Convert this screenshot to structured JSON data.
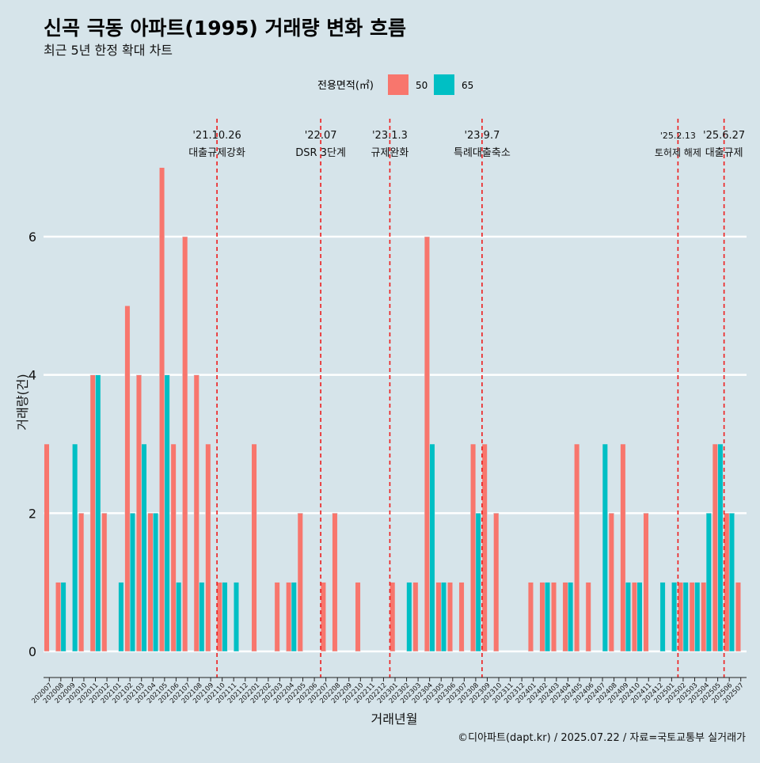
{
  "chart_data": {
    "type": "bar",
    "title": "신곡 극동 아파트(1995) 거래량 변화 흐름",
    "subtitle": "최근 5년 한정 확대 차트",
    "xlabel": "거래년월",
    "ylabel": "거래량(건)",
    "ylim": [
      0,
      7
    ],
    "yticks": [
      0,
      2,
      4,
      6
    ],
    "legend": {
      "title": "전용면적(㎡)",
      "position": "top-center"
    },
    "caption": "©디아파트(dapt.kr) / 2025.07.22 / 자료=국토교통부 실거래가",
    "categories": [
      "202007",
      "202008",
      "202009",
      "202010",
      "202011",
      "202012",
      "202101",
      "202102",
      "202103",
      "202104",
      "202105",
      "202106",
      "202107",
      "202108",
      "202109",
      "202110",
      "202111",
      "202112",
      "202201",
      "202202",
      "202203",
      "202204",
      "202205",
      "202206",
      "202207",
      "202208",
      "202209",
      "202210",
      "202211",
      "202212",
      "202301",
      "202302",
      "202303",
      "202304",
      "202305",
      "202306",
      "202307",
      "202308",
      "202309",
      "202310",
      "202311",
      "202312",
      "202401",
      "202402",
      "202403",
      "202404",
      "202405",
      "202406",
      "202407",
      "202408",
      "202409",
      "202410",
      "202411",
      "202412",
      "202501",
      "202502",
      "202503",
      "202504",
      "202505",
      "202506",
      "202507"
    ],
    "series": [
      {
        "name": "50",
        "color": "#f8766d",
        "values": [
          3,
          1,
          0,
          2,
          4,
          2,
          0,
          5,
          4,
          2,
          7,
          3,
          6,
          4,
          3,
          1,
          0,
          0,
          3,
          0,
          1,
          1,
          2,
          0,
          1,
          2,
          0,
          1,
          0,
          0,
          1,
          0,
          1,
          6,
          1,
          1,
          1,
          3,
          3,
          2,
          0,
          0,
          1,
          1,
          1,
          1,
          3,
          1,
          0,
          2,
          3,
          1,
          2,
          0,
          0,
          1,
          1,
          1,
          3,
          2,
          1
        ]
      },
      {
        "name": "65",
        "color": "#00bfc4",
        "values": [
          0,
          1,
          3,
          0,
          4,
          0,
          1,
          2,
          3,
          2,
          4,
          1,
          0,
          1,
          0,
          1,
          1,
          0,
          0,
          0,
          0,
          1,
          0,
          0,
          0,
          0,
          0,
          0,
          0,
          0,
          0,
          1,
          0,
          3,
          1,
          0,
          0,
          2,
          0,
          0,
          0,
          0,
          0,
          1,
          0,
          1,
          0,
          0,
          3,
          0,
          1,
          1,
          0,
          1,
          1,
          1,
          1,
          2,
          3,
          2,
          0
        ]
      }
    ],
    "annotations": [
      {
        "date": "'21.10.26",
        "label": "대출규제강화",
        "at_category": "202110"
      },
      {
        "date": "'22.07",
        "label": "DSR 3단계",
        "at_category": "202207"
      },
      {
        "date": "'23.1.3",
        "label": "규제완화",
        "at_category": "202301"
      },
      {
        "date": "'23.9.7",
        "label": "특례대출축소",
        "at_category": "202309"
      },
      {
        "date": "'25.2.13",
        "label": "토허제 해제",
        "at_category": "202502"
      },
      {
        "date": "'25.6.27",
        "label": "대출규제",
        "at_category": "202506"
      }
    ]
  }
}
